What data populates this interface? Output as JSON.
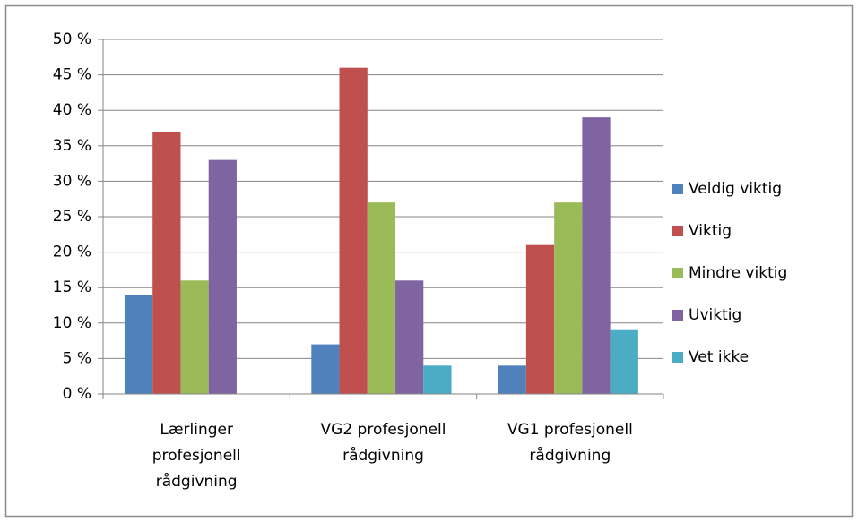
{
  "chart_data": {
    "type": "bar",
    "categories": [
      "Lærlinger profesjonell rådgivning",
      "VG2 profesjonell rådgivning",
      "VG1 profesjonell rådgivning"
    ],
    "series": [
      {
        "name": "Veldig viktig",
        "color": "#4f81bd",
        "values": [
          14,
          7,
          4
        ]
      },
      {
        "name": "Viktig",
        "color": "#c0504d",
        "values": [
          37,
          46,
          21
        ]
      },
      {
        "name": "Mindre viktig",
        "color": "#9bbb59",
        "values": [
          16,
          27,
          27
        ]
      },
      {
        "name": "Uviktig",
        "color": "#8064a2",
        "values": [
          33,
          16,
          39
        ]
      },
      {
        "name": "Vet ikke",
        "color": "#4bacc6",
        "values": [
          0,
          4,
          9
        ]
      }
    ],
    "ylim": [
      0,
      50
    ],
    "yticks": [
      {
        "value": 0,
        "label": "0 %"
      },
      {
        "value": 5,
        "label": "5 %"
      },
      {
        "value": 10,
        "label": "10 %"
      },
      {
        "value": 15,
        "label": "15 %"
      },
      {
        "value": 20,
        "label": "20 %"
      },
      {
        "value": 25,
        "label": "25 %"
      },
      {
        "value": 30,
        "label": "30 %"
      },
      {
        "value": 35,
        "label": "35 %"
      },
      {
        "value": 40,
        "label": "40 %"
      },
      {
        "value": 45,
        "label": "45 %"
      },
      {
        "value": 50,
        "label": "50 %"
      }
    ],
    "grid": true,
    "legend": "right"
  }
}
